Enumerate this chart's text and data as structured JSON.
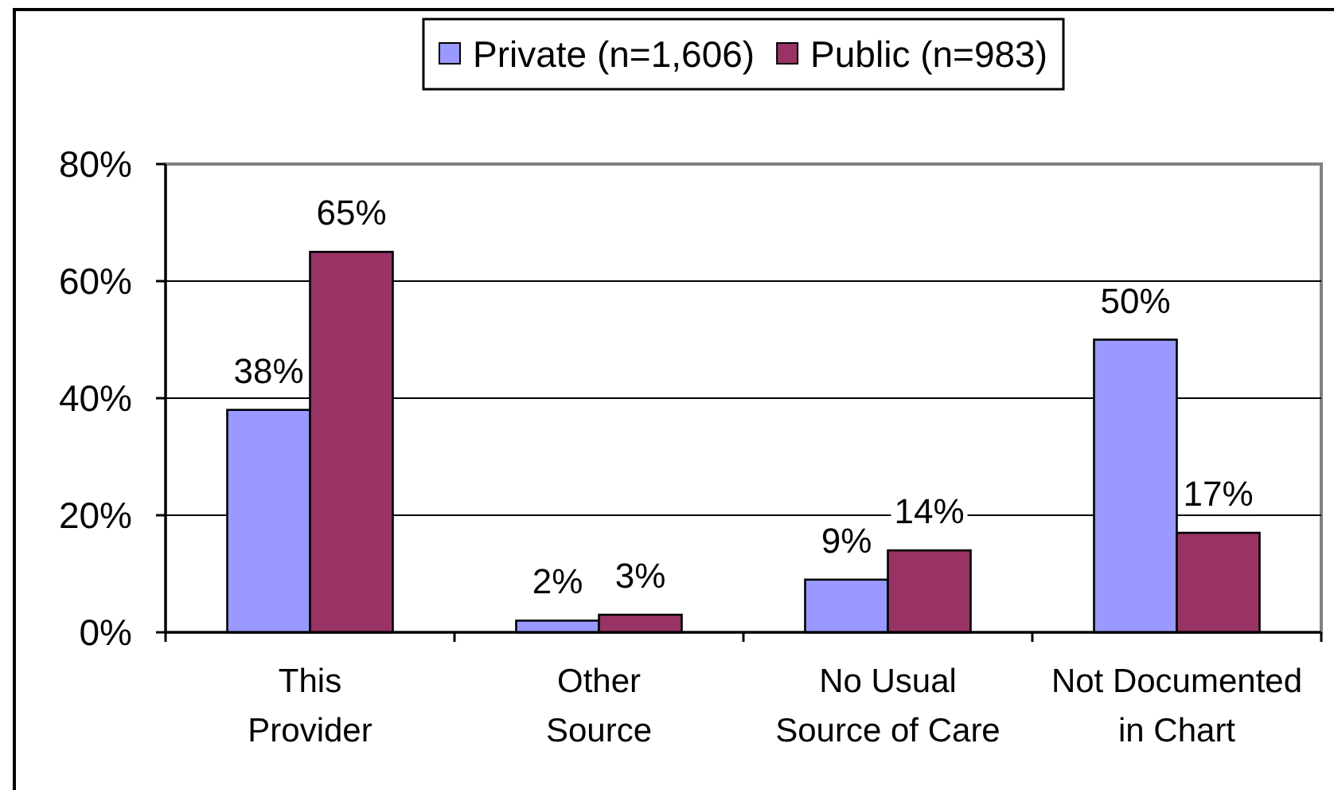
{
  "chart_data": {
    "type": "bar",
    "categories": [
      "This\nProvider",
      "Other\nSource",
      "No Usual\nSource of Care",
      "Not Documented\nin Chart"
    ],
    "series": [
      {
        "name": "Private (n=1,606)",
        "color": "#9999ff",
        "values": [
          38,
          2,
          9,
          50
        ],
        "value_labels": [
          "38%",
          "2%",
          "9%",
          "50%"
        ]
      },
      {
        "name": "Public (n=983)",
        "color": "#993366",
        "values": [
          65,
          3,
          14,
          17
        ],
        "value_labels": [
          "65%",
          "3%",
          "14%",
          "17%"
        ]
      }
    ],
    "ylim": [
      0,
      80
    ],
    "yticks": [
      {
        "value": 0,
        "label": "0%"
      },
      {
        "value": 20,
        "label": "20%"
      },
      {
        "value": 40,
        "label": "40%"
      },
      {
        "value": 60,
        "label": "60%"
      },
      {
        "value": 80,
        "label": "80%"
      }
    ],
    "grid": "y",
    "legend": "top"
  }
}
